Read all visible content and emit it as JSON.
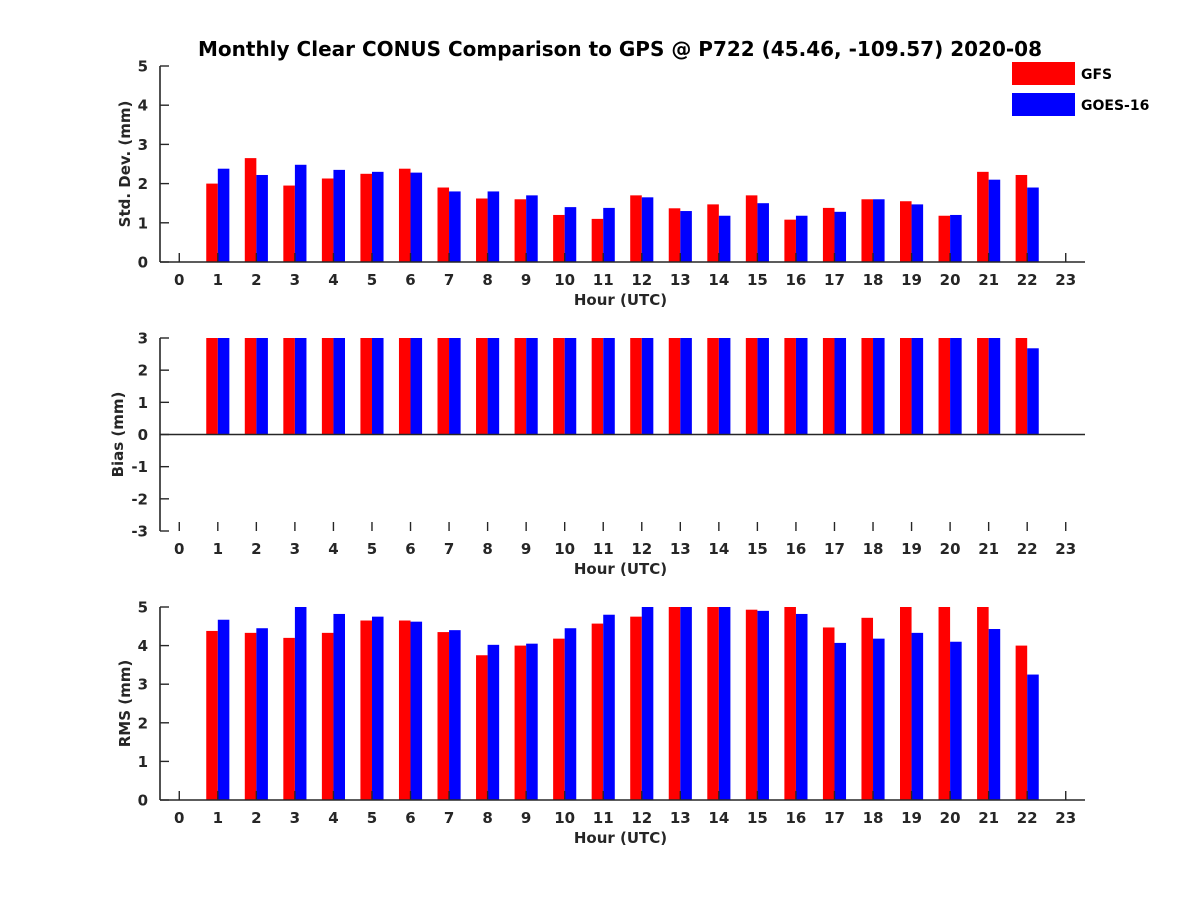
{
  "title": "Monthly Clear CONUS Comparison to GPS @ P722 (45.46, -109.57) 2020-08",
  "colors": {
    "GFS": "#ff0000",
    "GOES-16": "#0000ff",
    "axis": "#262626"
  },
  "legend": {
    "placement": "top-right",
    "entries": [
      "GFS",
      "GOES-16"
    ]
  },
  "chart_data": [
    {
      "type": "bar",
      "xlabel": "Hour (UTC)",
      "ylabel": "Std. Dev. (mm)",
      "xlim": [
        -0.5,
        23.5
      ],
      "ylim": [
        0,
        5
      ],
      "xticks": [
        0,
        1,
        2,
        3,
        4,
        5,
        6,
        7,
        8,
        9,
        10,
        11,
        12,
        13,
        14,
        15,
        16,
        17,
        18,
        19,
        20,
        21,
        22,
        23
      ],
      "yticks": [
        0,
        1,
        2,
        3,
        4,
        5
      ],
      "grid": false,
      "categories": [
        1,
        2,
        3,
        4,
        5,
        6,
        7,
        8,
        9,
        10,
        11,
        12,
        13,
        14,
        15,
        16,
        17,
        18,
        19,
        20,
        21,
        22
      ],
      "series": [
        {
          "name": "GFS",
          "values": [
            2.0,
            2.65,
            1.95,
            2.13,
            2.25,
            2.38,
            1.9,
            1.62,
            1.6,
            1.2,
            1.1,
            1.7,
            1.37,
            1.47,
            1.7,
            1.08,
            1.38,
            1.6,
            1.55,
            1.18,
            2.3,
            2.22
          ]
        },
        {
          "name": "GOES-16",
          "values": [
            2.38,
            2.22,
            2.48,
            2.35,
            2.3,
            2.28,
            1.8,
            1.8,
            1.7,
            1.4,
            1.38,
            1.65,
            1.3,
            1.18,
            1.5,
            1.18,
            1.28,
            1.6,
            1.47,
            1.2,
            2.1,
            1.9
          ]
        }
      ]
    },
    {
      "type": "bar",
      "xlabel": "Hour (UTC)",
      "ylabel": "Bias (mm)",
      "xlim": [
        -0.5,
        23.5
      ],
      "ylim": [
        -3,
        3
      ],
      "xticks": [
        0,
        1,
        2,
        3,
        4,
        5,
        6,
        7,
        8,
        9,
        10,
        11,
        12,
        13,
        14,
        15,
        16,
        17,
        18,
        19,
        20,
        21,
        22,
        23
      ],
      "yticks": [
        -3,
        -2,
        -1,
        0,
        1,
        2,
        3
      ],
      "grid": false,
      "zero_line": true,
      "categories": [
        1,
        2,
        3,
        4,
        5,
        6,
        7,
        8,
        9,
        10,
        11,
        12,
        13,
        14,
        15,
        16,
        17,
        18,
        19,
        20,
        21,
        22
      ],
      "series": [
        {
          "name": "GFS",
          "values": [
            3,
            3,
            3,
            3,
            3,
            3,
            3,
            3,
            3,
            3,
            3,
            3,
            3,
            3,
            3,
            3,
            3,
            3,
            3,
            3,
            3,
            3
          ]
        },
        {
          "name": "GOES-16",
          "values": [
            3,
            3,
            3,
            3,
            3,
            3,
            3,
            3,
            3,
            3,
            3,
            3,
            3,
            3,
            3,
            3,
            3,
            3,
            3,
            3,
            3,
            2.68
          ]
        }
      ]
    },
    {
      "type": "bar",
      "xlabel": "Hour (UTC)",
      "ylabel": "RMS (mm)",
      "xlim": [
        -0.5,
        23.5
      ],
      "ylim": [
        0,
        5
      ],
      "xticks": [
        0,
        1,
        2,
        3,
        4,
        5,
        6,
        7,
        8,
        9,
        10,
        11,
        12,
        13,
        14,
        15,
        16,
        17,
        18,
        19,
        20,
        21,
        22,
        23
      ],
      "yticks": [
        0,
        1,
        2,
        3,
        4,
        5
      ],
      "grid": false,
      "categories": [
        1,
        2,
        3,
        4,
        5,
        6,
        7,
        8,
        9,
        10,
        11,
        12,
        13,
        14,
        15,
        16,
        17,
        18,
        19,
        20,
        21,
        22
      ],
      "series": [
        {
          "name": "GFS",
          "values": [
            4.38,
            4.33,
            4.2,
            4.33,
            4.65,
            4.65,
            4.35,
            3.75,
            4.0,
            4.18,
            4.57,
            4.75,
            5.0,
            5.0,
            4.93,
            5.0,
            4.47,
            4.72,
            5.0,
            5.0,
            5.0,
            4.0
          ]
        },
        {
          "name": "GOES-16",
          "values": [
            4.67,
            4.45,
            5.0,
            4.82,
            4.75,
            4.62,
            4.4,
            4.02,
            4.05,
            4.45,
            4.8,
            5.0,
            5.0,
            5.0,
            4.9,
            4.82,
            4.07,
            4.18,
            4.33,
            4.1,
            4.43,
            3.25
          ]
        }
      ]
    }
  ]
}
